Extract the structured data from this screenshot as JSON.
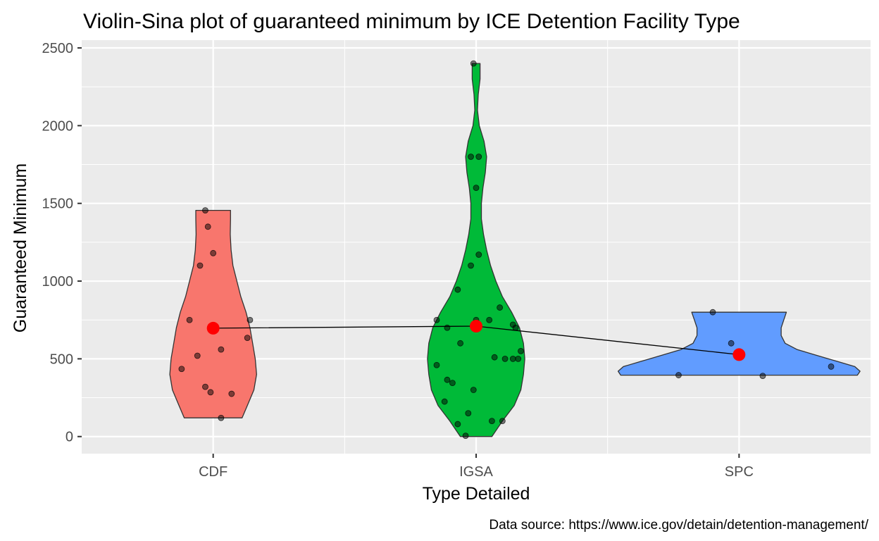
{
  "chart_data": {
    "type": "violin",
    "title": "Violin-Sina plot of guaranteed minimum by ICE Detention Facility Type",
    "xlabel": "Type Detailed",
    "ylabel": "Guaranteed Minimum",
    "caption": "Data source: https://www.ice.gov/detain/detention-management/",
    "categories": [
      "CDF",
      "IGSA",
      "SPC"
    ],
    "ylim": [
      -110,
      2550
    ],
    "yticks": [
      0,
      500,
      1000,
      1500,
      2000,
      2500
    ],
    "grid": true,
    "legend": "none",
    "colors": {
      "CDF": "#F8766D",
      "IGSA": "#00BA38",
      "SPC": "#619CFF"
    },
    "mean_color": "#FF0000",
    "groups": [
      {
        "category": "CDF",
        "mean": 697,
        "points": [
          {
            "offset": -0.03,
            "y": 1455
          },
          {
            "offset": -0.02,
            "y": 1350
          },
          {
            "offset": 0.0,
            "y": 1180
          },
          {
            "offset": -0.05,
            "y": 1100
          },
          {
            "offset": 0.14,
            "y": 750
          },
          {
            "offset": -0.09,
            "y": 750
          },
          {
            "offset": 0.13,
            "y": 635
          },
          {
            "offset": 0.03,
            "y": 560
          },
          {
            "offset": -0.06,
            "y": 520
          },
          {
            "offset": -0.12,
            "y": 435
          },
          {
            "offset": -0.03,
            "y": 320
          },
          {
            "offset": -0.01,
            "y": 285
          },
          {
            "offset": 0.07,
            "y": 275
          },
          {
            "offset": 0.03,
            "y": 120
          }
        ],
        "violin": [
          {
            "y": 120,
            "w": 0.11
          },
          {
            "y": 200,
            "w": 0.13
          },
          {
            "y": 300,
            "w": 0.155
          },
          {
            "y": 400,
            "w": 0.165
          },
          {
            "y": 500,
            "w": 0.16
          },
          {
            "y": 600,
            "w": 0.15
          },
          {
            "y": 700,
            "w": 0.14
          },
          {
            "y": 800,
            "w": 0.125
          },
          {
            "y": 900,
            "w": 0.105
          },
          {
            "y": 1000,
            "w": 0.09
          },
          {
            "y": 1100,
            "w": 0.075
          },
          {
            "y": 1200,
            "w": 0.068
          },
          {
            "y": 1300,
            "w": 0.065
          },
          {
            "y": 1400,
            "w": 0.066
          },
          {
            "y": 1455,
            "w": 0.066
          }
        ]
      },
      {
        "category": "IGSA",
        "mean": 710,
        "points": [
          {
            "offset": -0.01,
            "y": 2400
          },
          {
            "offset": -0.02,
            "y": 1800
          },
          {
            "offset": 0.01,
            "y": 1800
          },
          {
            "offset": 0.0,
            "y": 1600
          },
          {
            "offset": 0.01,
            "y": 1170
          },
          {
            "offset": -0.02,
            "y": 1100
          },
          {
            "offset": -0.07,
            "y": 945
          },
          {
            "offset": 0.09,
            "y": 830
          },
          {
            "offset": -0.15,
            "y": 750
          },
          {
            "offset": 0.0,
            "y": 750
          },
          {
            "offset": 0.05,
            "y": 750
          },
          {
            "offset": -0.11,
            "y": 700
          },
          {
            "offset": 0.14,
            "y": 720
          },
          {
            "offset": 0.15,
            "y": 700
          },
          {
            "offset": -0.06,
            "y": 600
          },
          {
            "offset": 0.17,
            "y": 550
          },
          {
            "offset": 0.07,
            "y": 510
          },
          {
            "offset": 0.11,
            "y": 500
          },
          {
            "offset": 0.14,
            "y": 500
          },
          {
            "offset": 0.16,
            "y": 500
          },
          {
            "offset": -0.15,
            "y": 460
          },
          {
            "offset": -0.11,
            "y": 365
          },
          {
            "offset": -0.09,
            "y": 345
          },
          {
            "offset": -0.01,
            "y": 300
          },
          {
            "offset": -0.12,
            "y": 225
          },
          {
            "offset": -0.03,
            "y": 150
          },
          {
            "offset": 0.06,
            "y": 100
          },
          {
            "offset": 0.1,
            "y": 100
          },
          {
            "offset": -0.07,
            "y": 80
          },
          {
            "offset": -0.04,
            "y": 5
          }
        ],
        "violin": [
          {
            "y": 0,
            "w": 0.06
          },
          {
            "y": 100,
            "w": 0.1
          },
          {
            "y": 200,
            "w": 0.145
          },
          {
            "y": 300,
            "w": 0.17
          },
          {
            "y": 400,
            "w": 0.18
          },
          {
            "y": 500,
            "w": 0.185
          },
          {
            "y": 600,
            "w": 0.18
          },
          {
            "y": 700,
            "w": 0.165
          },
          {
            "y": 800,
            "w": 0.135
          },
          {
            "y": 900,
            "w": 0.1
          },
          {
            "y": 1000,
            "w": 0.075
          },
          {
            "y": 1100,
            "w": 0.055
          },
          {
            "y": 1200,
            "w": 0.04
          },
          {
            "y": 1300,
            "w": 0.028
          },
          {
            "y": 1400,
            "w": 0.02
          },
          {
            "y": 1500,
            "w": 0.02
          },
          {
            "y": 1600,
            "w": 0.026
          },
          {
            "y": 1700,
            "w": 0.035
          },
          {
            "y": 1800,
            "w": 0.04
          },
          {
            "y": 1900,
            "w": 0.03
          },
          {
            "y": 2000,
            "w": 0.012
          },
          {
            "y": 2100,
            "w": 0.005
          },
          {
            "y": 2200,
            "w": 0.008
          },
          {
            "y": 2300,
            "w": 0.015
          },
          {
            "y": 2400,
            "w": 0.015
          }
        ]
      },
      {
        "category": "SPC",
        "mean": 527,
        "points": [
          {
            "offset": -0.1,
            "y": 800
          },
          {
            "offset": -0.03,
            "y": 600
          },
          {
            "offset": -0.23,
            "y": 395
          },
          {
            "offset": 0.09,
            "y": 390
          },
          {
            "offset": 0.35,
            "y": 450
          }
        ],
        "violin": [
          {
            "y": 395,
            "w": 0.45
          },
          {
            "y": 420,
            "w": 0.46
          },
          {
            "y": 450,
            "w": 0.44
          },
          {
            "y": 480,
            "w": 0.38
          },
          {
            "y": 520,
            "w": 0.3
          },
          {
            "y": 560,
            "w": 0.22
          },
          {
            "y": 600,
            "w": 0.175
          },
          {
            "y": 650,
            "w": 0.16
          },
          {
            "y": 700,
            "w": 0.16
          },
          {
            "y": 750,
            "w": 0.17
          },
          {
            "y": 800,
            "w": 0.18
          }
        ]
      }
    ]
  }
}
